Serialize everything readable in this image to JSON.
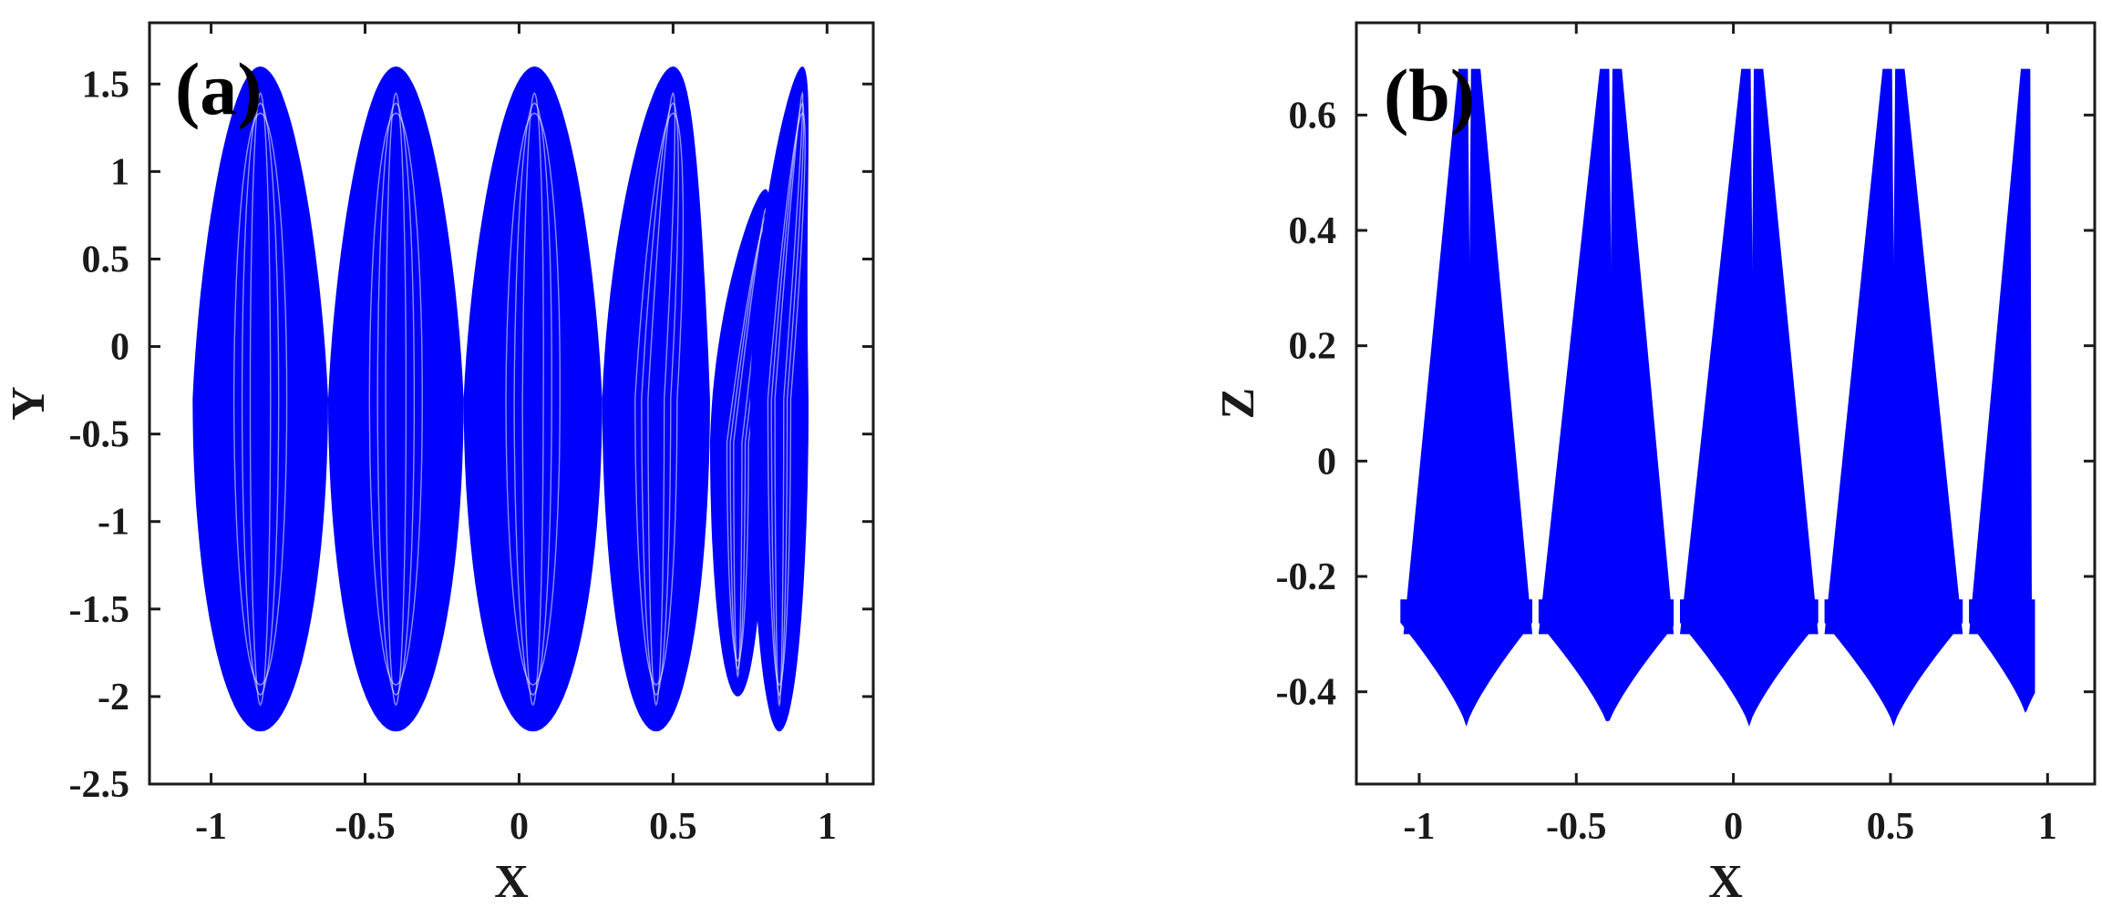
{
  "chart_data": [
    {
      "type": "line",
      "panel_label": "(a)",
      "xlabel": "X",
      "ylabel": "Y",
      "xlim": [
        -1.2,
        1.15
      ],
      "ylim": [
        -2.5,
        1.85
      ],
      "xticks": [
        -1,
        -0.5,
        0,
        0.5,
        1
      ],
      "xtick_labels": [
        "-1",
        "-0.5",
        "0",
        "0.5",
        "1"
      ],
      "yticks": [
        -2.5,
        -2,
        -1.5,
        -1,
        -0.5,
        0,
        0.5,
        1,
        1.5
      ],
      "ytick_labels": [
        "-2.5",
        "-2",
        "-1.5",
        "-1",
        "-0.5",
        "0",
        "0.5",
        "1",
        "1.5"
      ],
      "grid": false,
      "legend": "none",
      "series": [
        {
          "color": "#0000ff",
          "shape": "phase-portrait attractor: six vertical loops",
          "loops": [
            {
              "x_min": -1.06,
              "x_max": -0.62,
              "x_peak": -0.84,
              "y_top": 1.6,
              "y_bottom": -2.2
            },
            {
              "x_min": -0.62,
              "x_max": -0.18,
              "x_peak": -0.4,
              "y_top": 1.6,
              "y_bottom": -2.2
            },
            {
              "x_min": -0.18,
              "x_max": 0.27,
              "x_peak": 0.05,
              "y_top": 1.6,
              "y_bottom": -2.2
            },
            {
              "x_min": 0.27,
              "x_max": 0.62,
              "x_peak": 0.5,
              "y_top": 1.6,
              "y_bottom": -2.2
            },
            {
              "x_min": 0.62,
              "x_max": 0.8,
              "x_peak": 0.8,
              "y_top": 0.9,
              "y_bottom": -2.0
            },
            {
              "x_min": 0.75,
              "x_max": 0.94,
              "x_peak": 0.92,
              "y_top": 1.6,
              "y_bottom": -2.2
            }
          ]
        }
      ]
    },
    {
      "type": "line",
      "panel_label": "(b)",
      "xlabel": "X",
      "ylabel": "Z",
      "xlim": [
        -1.2,
        1.15
      ],
      "ylim": [
        -0.56,
        0.76
      ],
      "xticks": [
        -1,
        -0.5,
        0,
        0.5,
        1
      ],
      "xtick_labels": [
        "-1",
        "-0.5",
        "0",
        "0.5",
        "1"
      ],
      "yticks": [
        -0.4,
        -0.2,
        0,
        0.2,
        0.4,
        0.6
      ],
      "ytick_labels": [
        "-0.4",
        "-0.2",
        "0",
        "0.2",
        "0.4",
        "0.6"
      ],
      "grid": false,
      "legend": "none",
      "series": [
        {
          "color": "#0000ff",
          "shape": "phase-portrait attractor: spikes between V-shaped valleys",
          "spikes_x": [
            -0.86,
            -0.82,
            -0.41,
            -0.37,
            0.04,
            0.08,
            0.49,
            0.53,
            0.93
          ],
          "spike_top": 0.68,
          "valleys": [
            {
              "x_left": -1.06,
              "x_right": -0.64,
              "x_min": -0.85,
              "z_floor": -0.46
            },
            {
              "x_left": -0.62,
              "x_right": -0.19,
              "x_min": -0.4,
              "z_floor": -0.46
            },
            {
              "x_left": -0.17,
              "x_right": 0.27,
              "x_min": 0.05,
              "z_floor": -0.46
            },
            {
              "x_left": 0.29,
              "x_right": 0.73,
              "x_min": 0.51,
              "z_floor": -0.46
            },
            {
              "x_left": 0.75,
              "x_right": 0.96,
              "x_min": 0.93,
              "z_floor": -0.44
            }
          ]
        }
      ]
    }
  ]
}
